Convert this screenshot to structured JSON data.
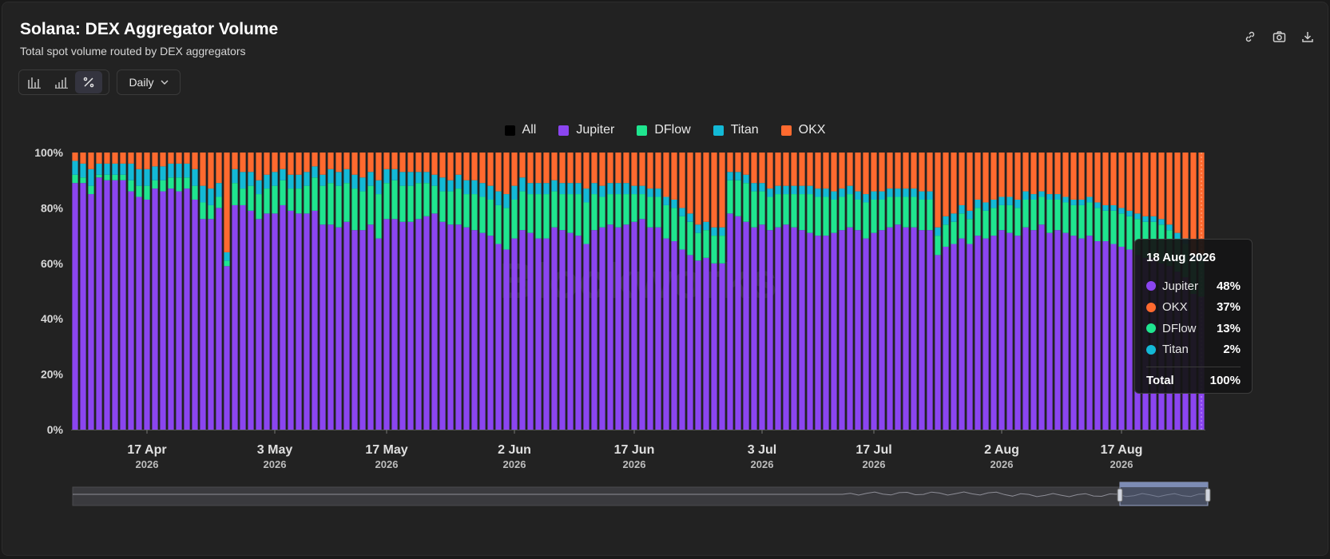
{
  "header": {
    "title": "Solana: DEX Aggregator Volume",
    "subtitle": "Total spot volume routed by DEX aggregators"
  },
  "toolbar": {
    "icons": [
      "link-icon",
      "camera-icon",
      "download-icon"
    ]
  },
  "view_toggle": {
    "options": [
      "bar-chart-icon",
      "stacked-bar-icon",
      "percent-icon"
    ],
    "active": "percent-icon"
  },
  "frequency": {
    "label": "Daily"
  },
  "legend": [
    {
      "name": "All",
      "color": "#000000"
    },
    {
      "name": "Jupiter",
      "color": "#8b45f0"
    },
    {
      "name": "DFlow",
      "color": "#1fe58f"
    },
    {
      "name": "Titan",
      "color": "#13b9d6"
    },
    {
      "name": "OKX",
      "color": "#ff6a2f"
    }
  ],
  "watermark": "Blockworks",
  "tooltip": {
    "date": "18 Aug 2026",
    "rows": [
      {
        "name": "Jupiter",
        "value": "48%",
        "color": "#8b45f0"
      },
      {
        "name": "OKX",
        "value": "37%",
        "color": "#ff6a2f"
      },
      {
        "name": "DFlow",
        "value": "13%",
        "color": "#1fe58f"
      },
      {
        "name": "Titan",
        "value": "2%",
        "color": "#13b9d6"
      }
    ],
    "total_label": "Total",
    "total_value": "100%"
  },
  "chart_data": {
    "type": "bar",
    "stacked": true,
    "normalized_percent": true,
    "x_start": "2026-04-08",
    "x_end": "2026-08-18",
    "series_order": [
      "Jupiter",
      "DFlow",
      "Titan",
      "OKX"
    ],
    "series": [
      {
        "name": "Jupiter",
        "color": "#8b45f0",
        "values": [
          89,
          89,
          85,
          91,
          90,
          90,
          90,
          86,
          84,
          83,
          87,
          86,
          87,
          86,
          87,
          83,
          76,
          76,
          80,
          59,
          81,
          81,
          79,
          76,
          78,
          78,
          81,
          79,
          78,
          78,
          79,
          74,
          74,
          73,
          75,
          72,
          72,
          74,
          69,
          76,
          76,
          75,
          75,
          76,
          77,
          78,
          75,
          74,
          74,
          73,
          72,
          71,
          70,
          67,
          65,
          69,
          72,
          71,
          69,
          69,
          73,
          72,
          71,
          70,
          67,
          72,
          73,
          74,
          73,
          74,
          75,
          76,
          73,
          73,
          69,
          68,
          65,
          63,
          61,
          62,
          60,
          60,
          78,
          77,
          75,
          73,
          74,
          72,
          73,
          74,
          73,
          72,
          71,
          70,
          70,
          71,
          72,
          73,
          72,
          69,
          71,
          72,
          73,
          74,
          73,
          73,
          72,
          72,
          63,
          66,
          67,
          69,
          67,
          70,
          69,
          70,
          72,
          71,
          70,
          73,
          72,
          74,
          71,
          72,
          71,
          70,
          69,
          70,
          68,
          68,
          67,
          66,
          65,
          63,
          62,
          62,
          60,
          59,
          57,
          55,
          49,
          48
        ]
      },
      {
        "name": "DFlow",
        "color": "#1fe58f",
        "values": [
          3,
          2,
          3,
          1,
          2,
          2,
          2,
          4,
          4,
          5,
          3,
          4,
          4,
          5,
          4,
          5,
          6,
          5,
          4,
          2,
          8,
          6,
          9,
          9,
          9,
          10,
          9,
          8,
          9,
          10,
          12,
          14,
          15,
          15,
          14,
          15,
          14,
          14,
          16,
          13,
          14,
          13,
          13,
          13,
          12,
          10,
          11,
          12,
          13,
          12,
          13,
          13,
          13,
          14,
          15,
          14,
          14,
          14,
          16,
          16,
          13,
          13,
          14,
          15,
          15,
          13,
          11,
          11,
          12,
          11,
          10,
          9,
          11,
          11,
          12,
          12,
          12,
          12,
          10,
          10,
          10,
          10,
          12,
          13,
          14,
          13,
          12,
          12,
          12,
          11,
          12,
          13,
          14,
          14,
          14,
          12,
          12,
          12,
          11,
          13,
          12,
          11,
          11,
          10,
          11,
          11,
          11,
          11,
          7,
          8,
          8,
          9,
          9,
          10,
          10,
          10,
          9,
          10,
          10,
          10,
          11,
          10,
          12,
          11,
          11,
          11,
          12,
          12,
          12,
          11,
          12,
          12,
          12,
          13,
          13,
          13,
          14,
          13,
          12,
          12,
          12,
          13
        ]
      },
      {
        "name": "Titan",
        "color": "#13b9d6",
        "values": [
          5,
          5,
          6,
          4,
          4,
          4,
          4,
          6,
          6,
          6,
          5,
          5,
          5,
          5,
          5,
          6,
          6,
          6,
          5,
          3,
          5,
          6,
          5,
          5,
          5,
          5,
          4,
          5,
          5,
          5,
          4,
          4,
          5,
          5,
          5,
          5,
          5,
          5,
          5,
          5,
          4,
          5,
          5,
          4,
          4,
          4,
          5,
          4,
          5,
          5,
          5,
          5,
          5,
          5,
          5,
          5,
          5,
          4,
          4,
          4,
          4,
          4,
          4,
          4,
          5,
          4,
          4,
          4,
          4,
          4,
          3,
          3,
          3,
          3,
          3,
          3,
          3,
          3,
          3,
          3,
          3,
          3,
          3,
          3,
          3,
          3,
          3,
          3,
          3,
          3,
          3,
          3,
          3,
          3,
          3,
          3,
          3,
          3,
          3,
          3,
          3,
          3,
          3,
          3,
          3,
          3,
          3,
          3,
          3,
          3,
          3,
          3,
          3,
          3,
          3,
          3,
          3,
          3,
          3,
          3,
          2,
          2,
          2,
          2,
          2,
          2,
          2,
          2,
          2,
          2,
          2,
          2,
          2,
          2,
          2,
          2,
          2,
          2,
          2,
          2,
          2,
          2
        ]
      },
      {
        "name": "OKX",
        "color": "#ff6a2f",
        "values": [
          3,
          4,
          6,
          4,
          4,
          4,
          4,
          4,
          6,
          6,
          5,
          5,
          4,
          4,
          4,
          6,
          12,
          13,
          11,
          36,
          6,
          7,
          7,
          10,
          8,
          7,
          6,
          8,
          8,
          7,
          5,
          8,
          6,
          7,
          6,
          8,
          9,
          7,
          10,
          6,
          6,
          7,
          7,
          7,
          7,
          8,
          9,
          10,
          8,
          10,
          10,
          11,
          12,
          14,
          15,
          12,
          9,
          11,
          11,
          11,
          10,
          11,
          11,
          11,
          13,
          11,
          12,
          11,
          11,
          11,
          12,
          12,
          13,
          13,
          16,
          17,
          20,
          22,
          26,
          25,
          27,
          27,
          7,
          7,
          8,
          11,
          11,
          13,
          12,
          12,
          12,
          12,
          12,
          13,
          13,
          14,
          13,
          12,
          14,
          15,
          14,
          14,
          13,
          13,
          13,
          13,
          14,
          14,
          27,
          23,
          22,
          19,
          21,
          17,
          18,
          17,
          16,
          16,
          17,
          14,
          15,
          14,
          15,
          15,
          16,
          17,
          17,
          16,
          18,
          19,
          19,
          20,
          21,
          22,
          23,
          23,
          24,
          26,
          29,
          31,
          37,
          37
        ]
      }
    ],
    "x_ticks": [
      {
        "date": "2026-04-17",
        "label": "17 Apr",
        "sub": "2026"
      },
      {
        "date": "2026-05-03",
        "label": "3 May",
        "sub": "2026"
      },
      {
        "date": "2026-05-17",
        "label": "17 May",
        "sub": "2026"
      },
      {
        "date": "2026-06-02",
        "label": "2 Jun",
        "sub": "2026"
      },
      {
        "date": "2026-06-17",
        "label": "17 Jun",
        "sub": "2026"
      },
      {
        "date": "2026-07-03",
        "label": "3 Jul",
        "sub": "2026"
      },
      {
        "date": "2026-07-17",
        "label": "17 Jul",
        "sub": "2026"
      },
      {
        "date": "2026-08-02",
        "label": "2 Aug",
        "sub": "2026"
      },
      {
        "date": "2026-08-17",
        "label": "17 Aug",
        "sub": "2026"
      }
    ],
    "y_ticks": [
      "0%",
      "20%",
      "40%",
      "60%",
      "80%",
      "100%"
    ],
    "ylim": [
      0,
      100
    ],
    "legend_position": "top-center"
  }
}
